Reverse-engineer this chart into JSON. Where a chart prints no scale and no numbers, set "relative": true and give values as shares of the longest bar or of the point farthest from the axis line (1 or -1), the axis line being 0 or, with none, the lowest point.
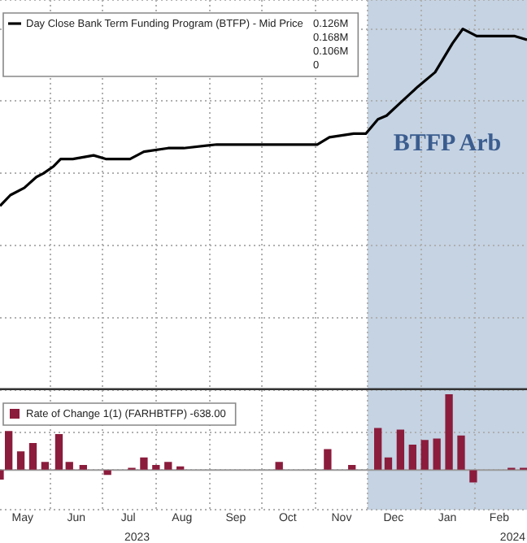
{
  "chart_data": [
    {
      "type": "line",
      "relative": true,
      "legend": "top left",
      "grid": true,
      "tick_labels": false,
      "x": [
        "2023-05-03",
        "2023-05-09",
        "2023-05-17",
        "2023-05-24",
        "2023-05-28",
        "2023-06-03",
        "2023-06-07",
        "2023-06-14",
        "2023-06-26",
        "2023-07-03",
        "2023-07-17",
        "2023-07-25",
        "2023-08-08",
        "2023-08-17",
        "2023-09-05",
        "2023-09-30",
        "2023-10-11",
        "2023-11-02",
        "2023-11-09",
        "2023-11-23",
        "2023-11-30",
        "2023-12-07",
        "2023-12-12",
        "2023-12-21",
        "2023-12-30",
        "2024-01-09",
        "2024-01-19",
        "2024-01-25",
        "2024-02-02",
        "2024-02-08",
        "2024-02-24",
        "2024-03-02"
      ],
      "series": [
        {
          "name": "Day Close Bank Term Funding Program (BTFP) - Mid Price",
          "color": "#000000",
          "values": [
            0.51,
            0.54,
            0.56,
            0.59,
            0.6,
            0.62,
            0.64,
            0.64,
            0.65,
            0.64,
            0.64,
            0.66,
            0.67,
            0.67,
            0.68,
            0.68,
            0.68,
            0.68,
            0.7,
            0.71,
            0.71,
            0.75,
            0.76,
            0.8,
            0.84,
            0.88,
            0.96,
            1,
            0.98,
            0.98,
            0.98,
            0.97
          ]
        }
      ],
      "xlim": [
        "2023-05-03",
        "2024-03-02"
      ],
      "xticks": [
        {
          "value": "2023-06-01",
          "label": null
        },
        {
          "value": "2023-07-01",
          "label": null
        },
        {
          "value": "2023-08-01",
          "label": null
        },
        {
          "value": "2023-09-01",
          "label": null
        },
        {
          "value": "2023-10-01",
          "label": null
        },
        {
          "value": "2023-11-01",
          "label": null
        },
        {
          "value": "2023-12-01",
          "label": null
        },
        {
          "value": "2024-01-01",
          "label": null
        },
        {
          "value": "2024-02-01",
          "label": null
        }
      ],
      "bands": [
        {
          "axis": "x",
          "from": "2023-12-01",
          "to": "2024-03-02",
          "label": "BTFP Arb",
          "color": "#c5d3e3"
        }
      ],
      "annotations": [
        "0.126M",
        "0.168M",
        "0.106M",
        "0"
      ]
    },
    {
      "type": "bar",
      "relative": true,
      "legend": "top left",
      "grid": true,
      "tick_labels": "x",
      "x": [
        "2023-05-03",
        "2023-05-08",
        "2023-05-15",
        "2023-05-22",
        "2023-05-29",
        "2023-06-06",
        "2023-06-12",
        "2023-06-20",
        "2023-07-04",
        "2023-07-18",
        "2023-07-25",
        "2023-08-01",
        "2023-08-08",
        "2023-08-15",
        "2023-10-11",
        "2023-11-08",
        "2023-11-22",
        "2023-12-07",
        "2023-12-13",
        "2023-12-20",
        "2023-12-27",
        "2024-01-03",
        "2024-01-10",
        "2024-01-17",
        "2024-01-24",
        "2024-01-31",
        "2024-02-22",
        "2024-02-29"
      ],
      "series": [
        {
          "name": "Rate of Change 1(1) (FARHBTFP) -638.00",
          "color": "#8b1c3c",
          "values": [
            -0.12,
            0.51,
            0.24,
            0.35,
            0.1,
            0.47,
            0.1,
            0.06,
            -0.06,
            0.02,
            0.16,
            0.06,
            0.1,
            0.04,
            0.1,
            0.27,
            0.06,
            0.55,
            0.16,
            0.53,
            0.33,
            0.39,
            0.41,
            1,
            0.45,
            -0.16,
            0.02,
            0.02
          ]
        }
      ],
      "xlim": [
        "2023-05-03",
        "2024-03-02"
      ],
      "xticks": [
        {
          "value": "2023-05-16",
          "label": "May"
        },
        {
          "value": "2023-06-01",
          "label": null
        },
        {
          "value": "2023-06-16",
          "label": "Jun"
        },
        {
          "value": "2023-07-01",
          "label": null
        },
        {
          "value": "2023-07-16",
          "label": "Jul"
        },
        {
          "value": "2023-08-01",
          "label": null
        },
        {
          "value": "2023-08-16",
          "label": "Aug"
        },
        {
          "value": "2023-09-01",
          "label": null
        },
        {
          "value": "2023-09-16",
          "label": "Sep"
        },
        {
          "value": "2023-10-01",
          "label": null
        },
        {
          "value": "2023-10-16",
          "label": "Oct"
        },
        {
          "value": "2023-11-01",
          "label": null
        },
        {
          "value": "2023-11-16",
          "label": "Nov"
        },
        {
          "value": "2023-12-01",
          "label": null
        },
        {
          "value": "2023-12-16",
          "label": "Dec"
        },
        {
          "value": "2024-01-01",
          "label": null
        },
        {
          "value": "2024-01-16",
          "label": "Jan"
        },
        {
          "value": "2024-02-01",
          "label": null
        },
        {
          "value": "2024-02-15",
          "label": "Feb"
        }
      ],
      "bands": [
        {
          "axis": "x",
          "from": "2023-12-01",
          "to": "2024-03-02",
          "color": "#c5d3e3"
        }
      ],
      "annotations": [
        "2023",
        "2024"
      ]
    }
  ]
}
